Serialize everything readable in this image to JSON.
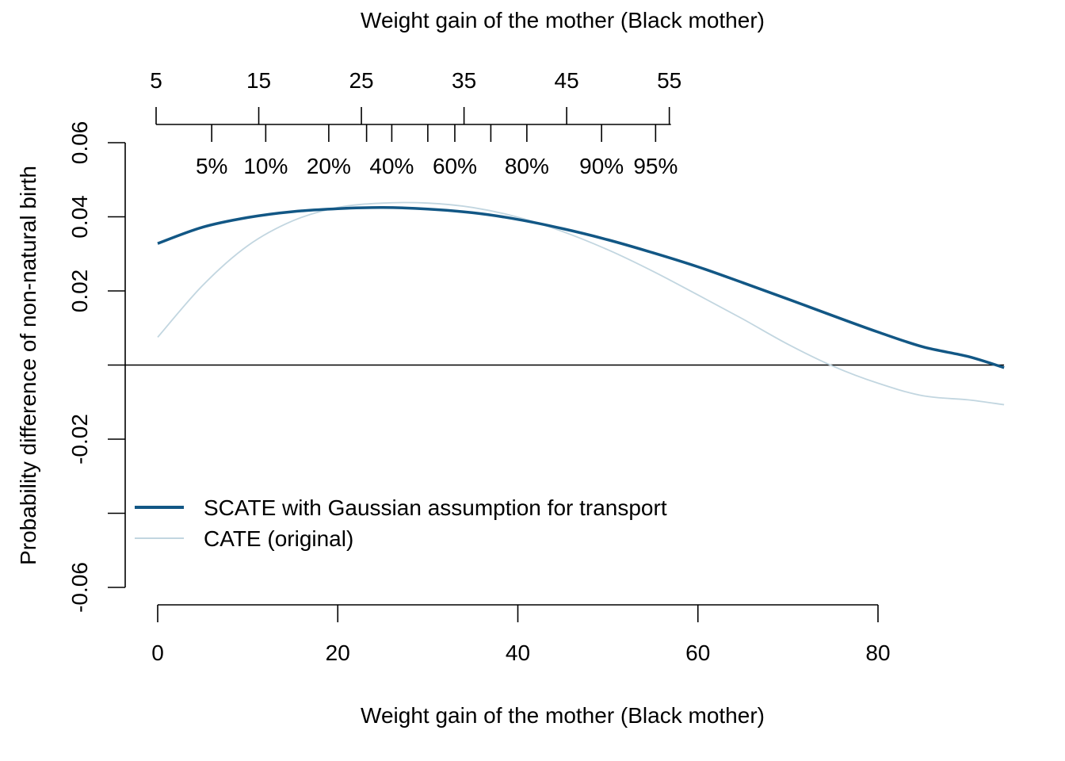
{
  "chart_data": {
    "type": "line",
    "xlabel": "Weight gain of the mother (Black mother)",
    "ylabel": "Probability difference of non-natural birth",
    "top_axis_title": "Weight gain of the mother (Black mother)",
    "xlim": [
      0,
      94
    ],
    "ylim": [
      -0.06,
      0.06
    ],
    "x_ticks": [
      0,
      20,
      40,
      60,
      80
    ],
    "x_tick_labels": [
      "0",
      "20",
      "40",
      "60",
      "80"
    ],
    "y_ticks": [
      -0.06,
      -0.04,
      -0.02,
      0,
      0.02,
      0.04,
      0.06
    ],
    "y_tick_labels": [
      "-0.06",
      "",
      "-0.02",
      "",
      "0.02",
      "0.04",
      "0.06"
    ],
    "top_axis_values": [
      {
        "x": 0,
        "label": "5"
      },
      {
        "x": 11.4,
        "label": "15"
      },
      {
        "x": 22.8,
        "label": "25"
      },
      {
        "x": 34.2,
        "label": "35"
      },
      {
        "x": 45.6,
        "label": "45"
      },
      {
        "x": 57.0,
        "label": "55"
      }
    ],
    "top_axis_percentiles": [
      {
        "x": 6.0,
        "label": "5%"
      },
      {
        "x": 12.0,
        "label": "10%"
      },
      {
        "x": 19.0,
        "label": "20%"
      },
      {
        "x": 23.2,
        "label": ""
      },
      {
        "x": 26.0,
        "label": "40%"
      },
      {
        "x": 30.0,
        "label": ""
      },
      {
        "x": 33.0,
        "label": "60%"
      },
      {
        "x": 37.0,
        "label": ""
      },
      {
        "x": 41.0,
        "label": "80%"
      },
      {
        "x": 49.3,
        "label": "90%"
      },
      {
        "x": 55.3,
        "label": "95%"
      }
    ],
    "reference_line_y": 0,
    "legend_placement": "bottom-left",
    "series": [
      {
        "name": "SCATE with Gaussian assumption for transport",
        "color": "#125785",
        "x": [
          0,
          5,
          10,
          15,
          20,
          25,
          30,
          35,
          40,
          45,
          50,
          55,
          60,
          65,
          70,
          75,
          80,
          85,
          90,
          94
        ],
        "y": [
          0.0328,
          0.0372,
          0.0398,
          0.0414,
          0.0422,
          0.0425,
          0.0421,
          0.0411,
          0.0393,
          0.0368,
          0.0338,
          0.0303,
          0.0265,
          0.0222,
          0.0178,
          0.0133,
          0.0089,
          0.0049,
          0.0023,
          -0.0007
        ]
      },
      {
        "name": "CATE (original)",
        "color": "#c2d6e0",
        "x": [
          0,
          5,
          10,
          15,
          20,
          25,
          30,
          35,
          40,
          45,
          50,
          55,
          60,
          65,
          70,
          75,
          80,
          85,
          90,
          94
        ],
        "y": [
          0.0075,
          0.0215,
          0.0322,
          0.0389,
          0.0425,
          0.0437,
          0.0437,
          0.0425,
          0.0399,
          0.036,
          0.0311,
          0.0253,
          0.0189,
          0.0124,
          0.0056,
          -0.0003,
          -0.0049,
          -0.0083,
          -0.0094,
          -0.0107
        ]
      }
    ]
  }
}
